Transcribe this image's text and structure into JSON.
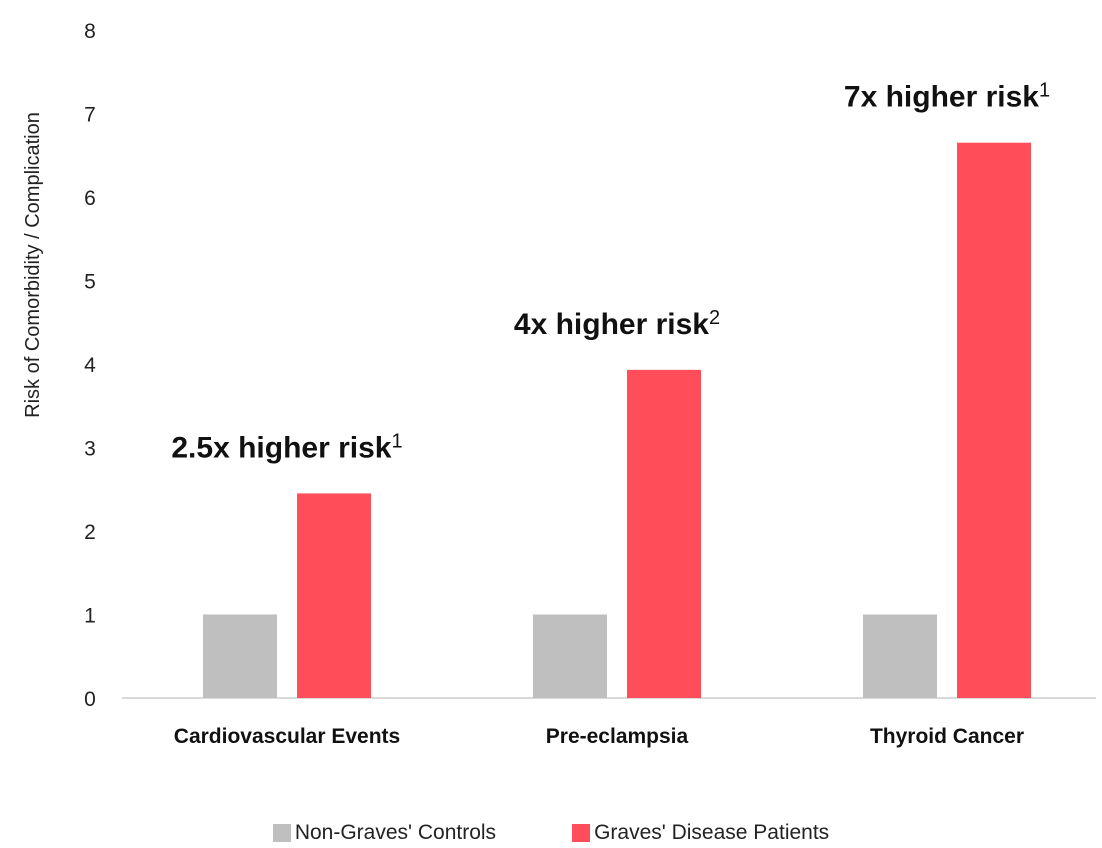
{
  "chart_data": {
    "type": "bar",
    "categories": [
      "Cardiovascular Events",
      "Pre-eclampsia",
      "Thyroid Cancer"
    ],
    "series": [
      {
        "name": "Non-Graves' Controls",
        "values": [
          1,
          1,
          1
        ],
        "color": "#bfbfbf"
      },
      {
        "name": "Graves' Disease Patients",
        "values": [
          2.45,
          3.93,
          6.65
        ],
        "color": "#ff4d5a"
      }
    ],
    "title": "",
    "xlabel": "",
    "ylabel": "Risk of Comorbidity / Complication",
    "ylim": [
      0,
      8
    ],
    "yticks": [
      "0",
      "1",
      "2",
      "3",
      "4",
      "5",
      "6",
      "7",
      "8"
    ],
    "grid": false,
    "legend_position": "bottom",
    "annotations": [
      {
        "category": "Cardiovascular Events",
        "text": "2.5x higher risk",
        "sup": "1"
      },
      {
        "category": "Pre-eclampsia",
        "text": "4x higher risk",
        "sup": "2"
      },
      {
        "category": "Thyroid Cancer",
        "text": "7x higher risk",
        "sup": "1"
      }
    ]
  }
}
